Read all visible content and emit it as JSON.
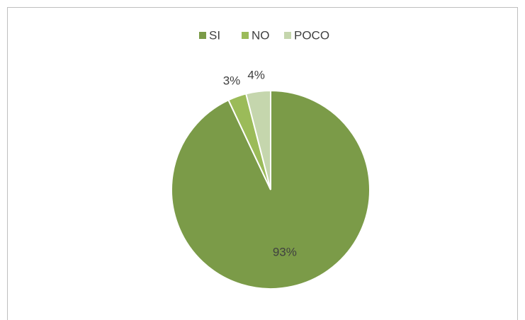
{
  "chart_data": {
    "type": "pie",
    "categories": [
      "SI",
      "NO",
      "POCO"
    ],
    "values": [
      93,
      3,
      4
    ],
    "value_labels": [
      "93%",
      "3%",
      "4%"
    ],
    "colors": [
      "#7b9b48",
      "#9bbb59",
      "#c5d6ad"
    ],
    "legend": "top"
  }
}
